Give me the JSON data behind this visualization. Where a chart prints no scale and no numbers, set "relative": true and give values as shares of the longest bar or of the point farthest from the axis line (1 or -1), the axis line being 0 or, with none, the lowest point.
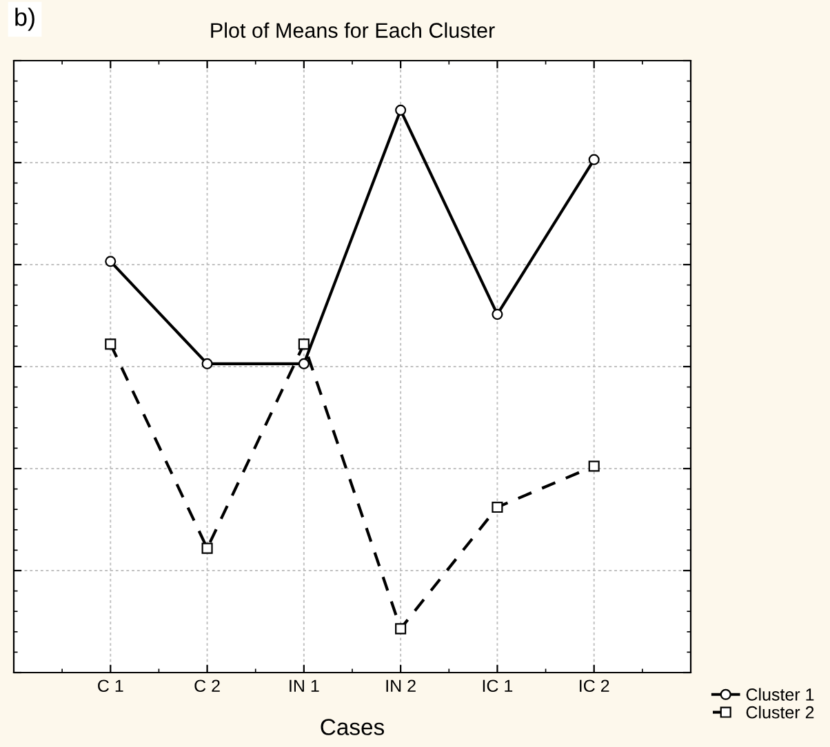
{
  "chart_data": {
    "type": "line",
    "title": "Plot of Means for Each Cluster",
    "xlabel": "Cases",
    "annotations": [
      "b)"
    ],
    "categories": [
      "C 1",
      "C 2",
      "IN 1",
      "IN 2",
      "IC 1",
      "IC 2"
    ],
    "relative": true,
    "grid": true,
    "legend": "bottom right",
    "series": [
      {
        "name": "Cluster 1",
        "color": "#000000",
        "marker": "circle",
        "line_style": "solid",
        "values": [
          0.731,
          0.549,
          0.549,
          1,
          0.637,
          0.912
        ]
      },
      {
        "name": "Cluster 2",
        "color": "#000000",
        "marker": "square",
        "line_style": "dashed",
        "values": [
          0.584,
          0.221,
          0.584,
          0.078,
          0.294,
          0.367
        ]
      }
    ]
  }
}
